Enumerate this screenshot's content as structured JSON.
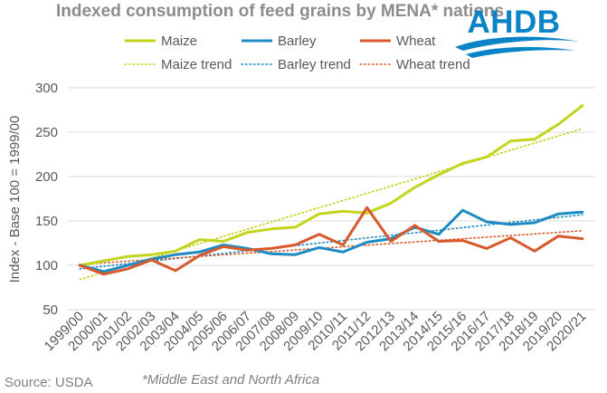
{
  "chart_data": {
    "type": "line",
    "title": "Indexed consumption of feed grains by MENA* nations",
    "xlabel": "",
    "ylabel": "Index - Base 100 = 1999/00",
    "ylim": [
      50,
      300
    ],
    "yticks": [
      50,
      100,
      150,
      200,
      250,
      300
    ],
    "grid": true,
    "legend_position": "top",
    "categories": [
      "1999/00",
      "2000/01",
      "2001/02",
      "2002/03",
      "2003/04",
      "2004/05",
      "2005/06",
      "2006/07",
      "2007/08",
      "2008/09",
      "2009/10",
      "2010/11",
      "2011/12",
      "2012/13",
      "2013/14",
      "2014/15",
      "2015/16",
      "2016/17",
      "2017/18",
      "2018/19",
      "2019/20",
      "2020/21"
    ],
    "series": [
      {
        "name": "Maize",
        "color": "#c3d41c",
        "values": [
          100,
          105,
          110,
          112,
          116,
          129,
          127,
          137,
          141,
          143,
          158,
          161,
          159,
          170,
          188,
          202,
          215,
          222,
          240,
          242,
          259,
          280
        ]
      },
      {
        "name": "Barley",
        "color": "#1d8ac3",
        "values": [
          100,
          93,
          100,
          107,
          112,
          115,
          123,
          119,
          113,
          112,
          120,
          115,
          126,
          130,
          143,
          135,
          162,
          149,
          146,
          148,
          158,
          160
        ]
      },
      {
        "name": "Wheat",
        "color": "#d75a2c",
        "values": [
          100,
          90,
          96,
          106,
          94,
          111,
          121,
          117,
          119,
          123,
          135,
          123,
          165,
          127,
          145,
          127,
          128,
          119,
          131,
          116,
          133,
          130
        ]
      }
    ],
    "trends": [
      {
        "name": "Maize trend",
        "color": "#c3d41c",
        "start": 84,
        "end": 254
      },
      {
        "name": "Barley trend",
        "color": "#1d8ac3",
        "start": 96,
        "end": 157
      },
      {
        "name": "Wheat trend",
        "color": "#d75a2c",
        "start": 101,
        "end": 139
      }
    ]
  },
  "source": "Source: USDA",
  "footnote": "*Middle East and North Africa",
  "logo": {
    "text": "AHDB",
    "color": "#0a84c6"
  }
}
